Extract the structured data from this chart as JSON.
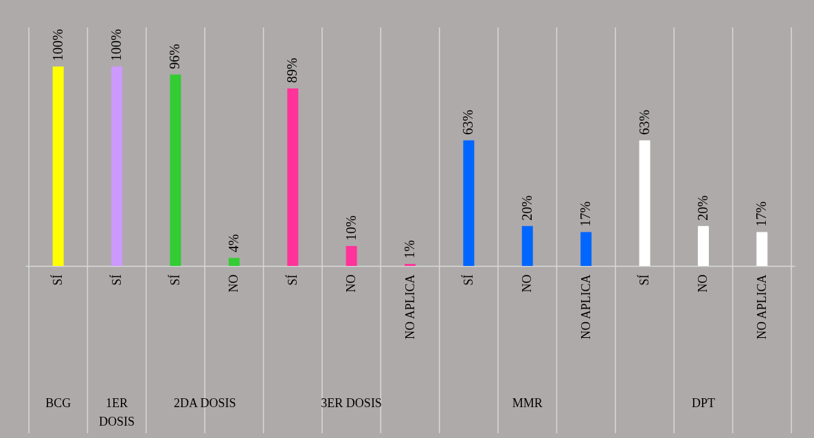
{
  "chart_data": {
    "type": "bar",
    "categories": [
      "SÍ",
      "SÍ",
      "SÍ",
      "NO",
      "SÍ",
      "NO",
      "NO APLICA",
      "SÍ",
      "NO",
      "NO APLICA",
      "SÍ",
      "NO",
      "NO APLICA"
    ],
    "values": [
      100,
      100,
      96,
      4,
      89,
      10,
      1,
      63,
      20,
      17,
      63,
      20,
      17
    ],
    "value_labels": [
      "100%",
      "100%",
      "96%",
      "4%",
      "89%",
      "10%",
      "1%",
      "63%",
      "20%",
      "17%",
      "63%",
      "20%",
      "17%"
    ],
    "colors": [
      "#ffff00",
      "#cc99ff",
      "#33cc33",
      "#33cc33",
      "#ff3399",
      "#ff3399",
      "#ff3399",
      "#0066ff",
      "#0066ff",
      "#0066ff",
      "#ffffff",
      "#ffffff",
      "#ffffff"
    ],
    "annotations": [
      "BCG",
      "1ER DOSIS",
      "2DA DOSIS",
      "3ER DOSIS",
      "MMR",
      "DPT"
    ]
  }
}
